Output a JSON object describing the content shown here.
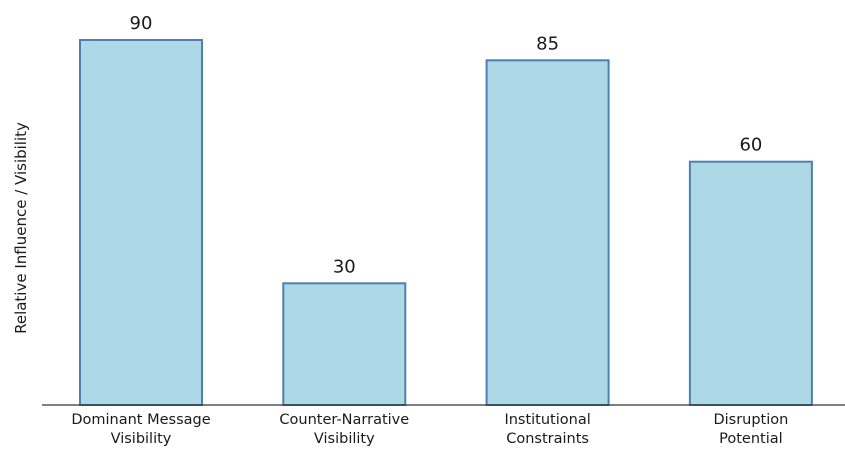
{
  "chart_data": {
    "type": "bar",
    "categories": [
      [
        "Dominant Message",
        "Visibility"
      ],
      [
        "Counter-Narrative",
        "Visibility"
      ],
      [
        "Institutional",
        "Constraints"
      ],
      [
        "Disruption",
        "Potential"
      ]
    ],
    "values": [
      90,
      30,
      85,
      60
    ],
    "ylabel": "Relative Influence / Visibility",
    "ylim": [
      0,
      90
    ],
    "grid": false,
    "show_value_labels": true,
    "colors": {
      "bar_fill": "#add8e6",
      "bar_stroke": "#4f7fb1",
      "axis": "#333333",
      "text": "#1a1a1a"
    }
  }
}
